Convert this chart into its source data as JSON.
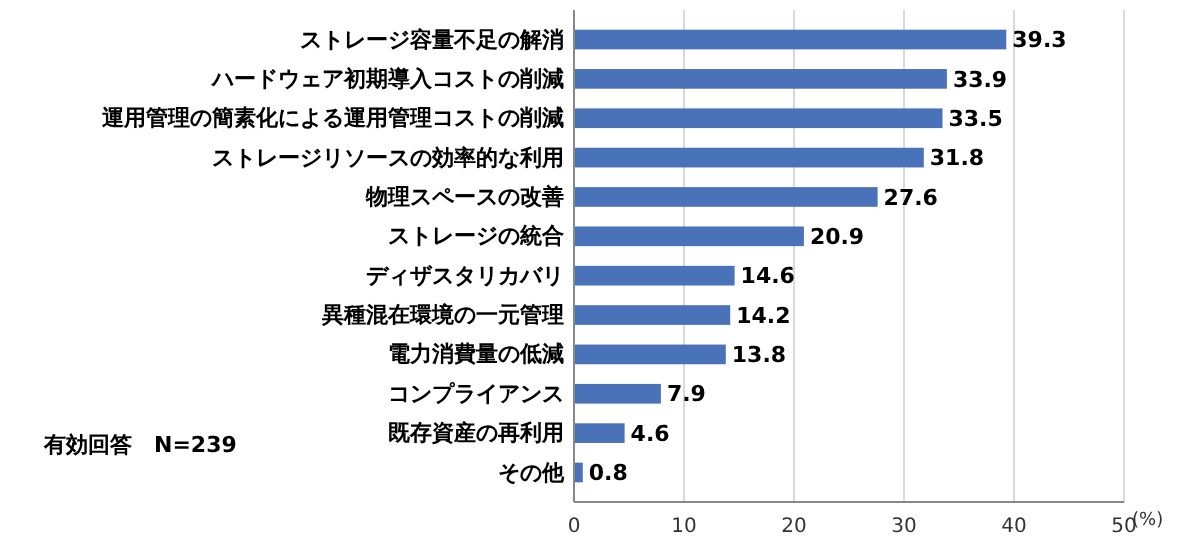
{
  "chart_data": {
    "type": "bar",
    "orientation": "horizontal",
    "categories": [
      "ストレージ容量不足の解消",
      "ハードウェア初期導入コストの削減",
      "運用管理の簡素化による運用管理コストの削減",
      "ストレージリソースの効率的な利用",
      "物理スペースの改善",
      "ストレージの統合",
      "ディザスタリカバリ",
      "異種混在環境の一元管理",
      "電力消費量の低減",
      "コンプライアンス",
      "既存資産の再利用",
      "その他"
    ],
    "values": [
      39.3,
      33.9,
      33.5,
      31.8,
      27.6,
      20.9,
      14.6,
      14.2,
      13.8,
      7.9,
      4.6,
      0.8
    ],
    "color": "#4a72b8",
    "data_labels": true,
    "xlim": [
      0,
      50
    ],
    "xticks": [
      0,
      10,
      20,
      30,
      40,
      50
    ],
    "grid": "x",
    "xlabel": "(%)",
    "annotations": [
      "有効回答　N=239"
    ]
  }
}
